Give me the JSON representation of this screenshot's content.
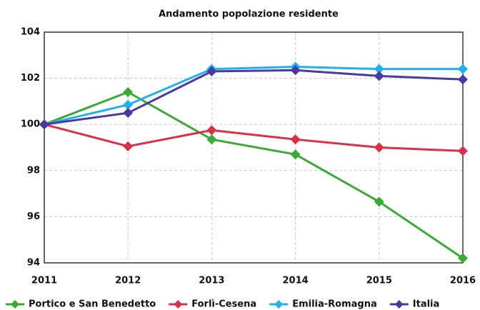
{
  "chart_data": {
    "type": "line",
    "title": "Andamento popolazione residente",
    "x": [
      2011,
      2012,
      2013,
      2014,
      2015,
      2016
    ],
    "xlim": [
      2011,
      2016
    ],
    "xticks": [
      2011,
      2012,
      2013,
      2014,
      2015,
      2016
    ],
    "ylim": [
      94,
      104
    ],
    "yticks": [
      94,
      96,
      98,
      100,
      102,
      104
    ],
    "grid": true,
    "series": [
      {
        "name": "Portico e San Benedetto",
        "color": "#3aa935",
        "values": [
          100,
          101.4,
          99.35,
          98.7,
          96.65,
          94.2
        ]
      },
      {
        "name": "Forlì-Cesena",
        "color": "#d9304a",
        "values": [
          100,
          99.05,
          99.75,
          99.35,
          99.0,
          98.85
        ]
      },
      {
        "name": "Emilia-Romagna",
        "color": "#1fb0f0",
        "values": [
          100,
          100.85,
          102.4,
          102.5,
          102.4,
          102.4
        ]
      },
      {
        "name": "Italia",
        "color": "#4a3aa0",
        "values": [
          100,
          100.5,
          102.3,
          102.35,
          102.1,
          101.95
        ]
      }
    ]
  }
}
